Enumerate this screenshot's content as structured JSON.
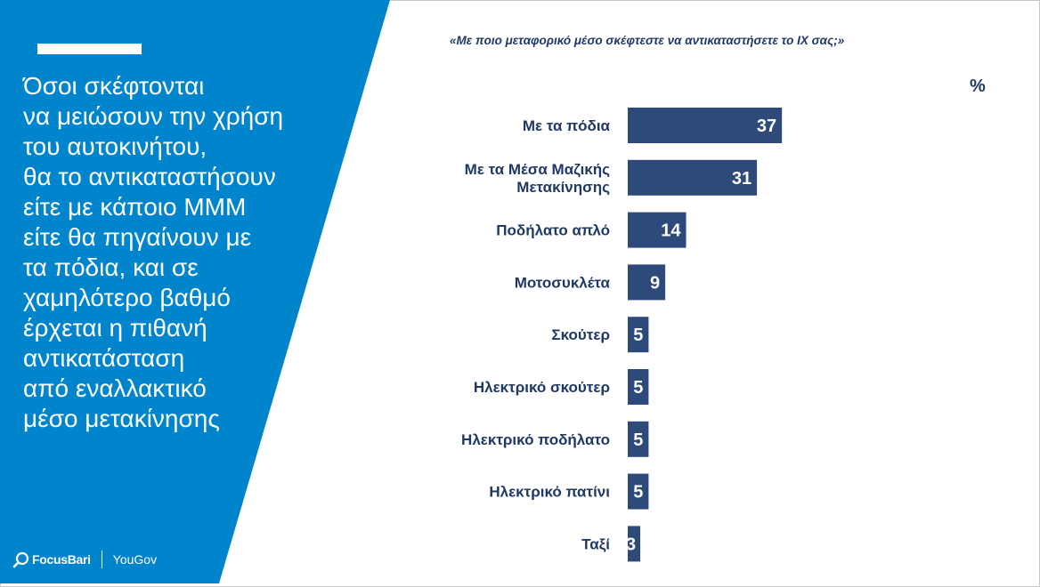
{
  "slide": {
    "headline": "Όσοι σκέφτονται\nνα μειώσουν την χρήση\nτου αυτοκινήτου,\nθα το αντικαταστήσουν\nείτε με κάποιο ΜΜΜ\nείτε θα πηγαίνουν με\nτα πόδια, και σε\nχαμηλότερο βαθμό\nέρχεται η πιθανή\nαντικατάσταση\nαπό εναλλακτικό\nμέσο μετακίνησης",
    "question": "«Με ποιο μεταφορικό μέσο σκέφτεστε να αντικαταστήσετε το ΙΧ σας;»",
    "unit": "%",
    "logo_left": "FocusBari",
    "logo_right": "YouGov"
  },
  "colors": {
    "panel": "#0085cc",
    "bar": "#2e4a7a",
    "label": "#1f3864",
    "value_text": "#ffffff"
  },
  "chart_data": {
    "type": "bar",
    "orientation": "horizontal",
    "categories": [
      [
        "Με τα πόδια"
      ],
      [
        "Με τα Μέσα Μαζικής",
        "Μετακίνησης"
      ],
      [
        "Ποδήλατο απλό"
      ],
      [
        "Μοτοσυκλέτα"
      ],
      [
        "Σκούτερ"
      ],
      [
        "Ηλεκτρικό σκούτερ"
      ],
      [
        "Ηλεκτρικό ποδήλατο"
      ],
      [
        "Ηλεκτρικό πατίνι"
      ],
      [
        "Ταξί"
      ]
    ],
    "values": [
      37,
      31,
      14,
      9,
      5,
      5,
      5,
      5,
      3
    ],
    "xlim": [
      0,
      100
    ],
    "grid": false,
    "legend": "none"
  }
}
